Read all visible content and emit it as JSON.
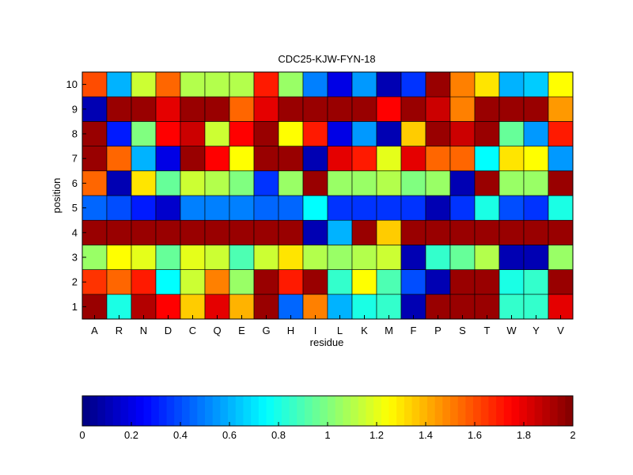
{
  "chart_data": {
    "type": "heatmap",
    "title": "CDC25-KJW-FYN-18",
    "xlabel": "residue",
    "ylabel": "position",
    "x_categories": [
      "A",
      "R",
      "N",
      "D",
      "C",
      "Q",
      "E",
      "G",
      "H",
      "I",
      "L",
      "K",
      "M",
      "F",
      "P",
      "S",
      "T",
      "W",
      "Y",
      "V"
    ],
    "y_categories": [
      "1",
      "2",
      "3",
      "4",
      "5",
      "6",
      "7",
      "8",
      "9",
      "10"
    ],
    "colormap": "jet",
    "clim": [
      0,
      2
    ],
    "colorbar": {
      "ticks": [
        0,
        0.2,
        0.4,
        0.6,
        0.8,
        1,
        1.2,
        1.4,
        1.6,
        1.8,
        2
      ],
      "tick_labels": [
        "0",
        "0.2",
        "0.4",
        "0.6",
        "0.8",
        "1",
        "1.2",
        "1.4",
        "1.6",
        "1.8",
        "2"
      ],
      "placement": "bottom"
    },
    "values_by_position": {
      "10": [
        1.6,
        0.6,
        1.15,
        1.55,
        1.1,
        1.1,
        1.1,
        1.7,
        1.05,
        0.5,
        0.2,
        0.55,
        0.1,
        0.35,
        1.95,
        1.5,
        1.3,
        0.6,
        0.65,
        1.25
      ],
      "9": [
        0.1,
        1.95,
        1.95,
        1.8,
        1.95,
        1.95,
        1.55,
        1.8,
        1.95,
        1.95,
        1.95,
        1.95,
        1.75,
        1.95,
        1.85,
        1.5,
        1.95,
        1.95,
        1.95,
        1.45
      ],
      "8": [
        1.95,
        0.3,
        1.0,
        1.75,
        1.85,
        1.15,
        1.75,
        1.95,
        1.25,
        1.7,
        0.2,
        0.55,
        0.1,
        1.35,
        1.95,
        1.85,
        1.95,
        0.95,
        0.55,
        1.7
      ],
      "7": [
        1.95,
        1.55,
        0.6,
        0.2,
        1.95,
        1.75,
        1.25,
        1.95,
        1.95,
        0.1,
        1.8,
        1.7,
        1.2,
        1.8,
        1.55,
        1.55,
        0.75,
        1.3,
        1.25,
        0.55
      ],
      "6": [
        1.55,
        0.1,
        1.3,
        0.95,
        1.15,
        1.1,
        1.0,
        0.35,
        1.05,
        1.95,
        1.05,
        1.05,
        1.1,
        1.0,
        1.05,
        0.1,
        1.95,
        1.05,
        1.05,
        1.95
      ],
      "5": [
        0.45,
        0.4,
        0.3,
        0.15,
        0.5,
        0.5,
        0.5,
        0.45,
        0.45,
        0.75,
        0.35,
        0.35,
        0.35,
        0.35,
        0.1,
        0.35,
        0.8,
        0.4,
        0.35,
        0.8
      ],
      "4": [
        1.95,
        1.95,
        1.95,
        1.95,
        1.95,
        1.95,
        1.95,
        1.95,
        1.95,
        0.1,
        0.6,
        1.95,
        1.35,
        1.95,
        1.95,
        1.95,
        1.95,
        1.95,
        1.95,
        1.95
      ],
      "3": [
        1.05,
        1.25,
        1.2,
        0.95,
        1.2,
        1.15,
        0.9,
        1.15,
        1.3,
        1.1,
        1.05,
        1.1,
        1.15,
        0.1,
        0.85,
        0.95,
        1.1,
        0.1,
        0.1,
        1.05
      ],
      "2": [
        1.65,
        1.55,
        1.7,
        0.75,
        1.15,
        1.5,
        1.05,
        1.95,
        1.7,
        1.95,
        0.85,
        1.25,
        0.9,
        0.4,
        0.1,
        1.95,
        1.95,
        0.8,
        0.85,
        1.95
      ],
      "1": [
        1.95,
        0.8,
        1.9,
        1.75,
        1.35,
        1.8,
        1.4,
        1.95,
        0.45,
        1.5,
        0.6,
        0.8,
        0.85,
        0.1,
        1.95,
        1.95,
        1.95,
        0.85,
        0.85,
        1.8
      ]
    }
  }
}
